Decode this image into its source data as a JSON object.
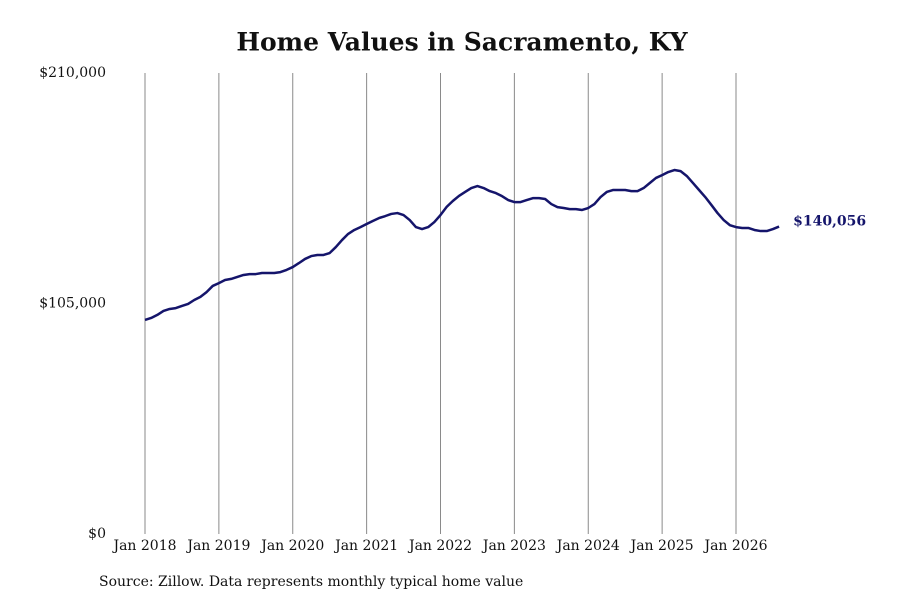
{
  "chart_data": {
    "type": "line",
    "title": "Home Values in Sacramento, KY",
    "source": "Source: Zillow. Data represents monthly typical home value",
    "x": [
      "Jan 2018",
      "Feb 2018",
      "Mar 2018",
      "Apr 2018",
      "May 2018",
      "Jun 2018",
      "Jul 2018",
      "Aug 2018",
      "Sep 2018",
      "Oct 2018",
      "Nov 2018",
      "Dec 2018",
      "Jan 2019",
      "Feb 2019",
      "Mar 2019",
      "Apr 2019",
      "May 2019",
      "Jun 2019",
      "Jul 2019",
      "Aug 2019",
      "Sep 2019",
      "Oct 2019",
      "Nov 2019",
      "Dec 2019",
      "Jan 2020",
      "Feb 2020",
      "Mar 2020",
      "Apr 2020",
      "May 2020",
      "Jun 2020",
      "Jul 2020",
      "Aug 2020",
      "Sep 2020",
      "Oct 2020",
      "Nov 2020",
      "Dec 2020",
      "Jan 2021",
      "Feb 2021",
      "Mar 2021",
      "Apr 2021",
      "May 2021",
      "Jun 2021",
      "Jul 2021",
      "Aug 2021",
      "Sep 2021",
      "Oct 2021",
      "Nov 2021",
      "Dec 2021",
      "Jan 2022",
      "Feb 2022",
      "Mar 2022",
      "Apr 2022",
      "May 2022",
      "Jun 2022",
      "Jul 2022",
      "Aug 2022",
      "Sep 2022",
      "Oct 2022",
      "Nov 2022",
      "Dec 2022",
      "Jan 2023",
      "Feb 2023",
      "Mar 2023",
      "Apr 2023",
      "May 2023",
      "Jun 2023",
      "Jul 2023",
      "Aug 2023",
      "Sep 2023",
      "Oct 2023",
      "Nov 2023",
      "Dec 2023",
      "Jan 2024",
      "Feb 2024",
      "Mar 2024",
      "Apr 2024",
      "May 2024",
      "Jun 2024",
      "Jul 2024",
      "Aug 2024",
      "Sep 2024",
      "Oct 2024",
      "Nov 2024",
      "Dec 2024",
      "Jan 2025",
      "Feb 2025",
      "Mar 2025",
      "Apr 2025",
      "May 2025",
      "Jun 2025",
      "Jul 2025",
      "Aug 2025",
      "Sep 2025",
      "Oct 2025",
      "Nov 2025",
      "Dec 2025",
      "Jan 2026",
      "Feb 2026",
      "Mar 2026",
      "Apr 2026",
      "May 2026",
      "Jun 2026",
      "Jul 2026",
      "Aug 2026"
    ],
    "values": [
      97500,
      98400,
      99800,
      101600,
      102500,
      102900,
      103900,
      104800,
      106600,
      108000,
      110200,
      113000,
      114300,
      115700,
      116200,
      117100,
      118000,
      118400,
      118400,
      118900,
      118900,
      118900,
      119300,
      120300,
      121600,
      123400,
      125300,
      126600,
      127100,
      127100,
      128000,
      130700,
      133900,
      136700,
      138500,
      139800,
      141200,
      142600,
      143900,
      144800,
      145800,
      146200,
      145300,
      143000,
      139800,
      138900,
      139800,
      142100,
      145300,
      149000,
      151700,
      154000,
      155800,
      157600,
      158500,
      157600,
      156200,
      155300,
      153900,
      152100,
      151200,
      151200,
      152100,
      153000,
      153000,
      152600,
      150300,
      148900,
      148500,
      148000,
      148000,
      147600,
      148500,
      150300,
      153500,
      155800,
      156700,
      156700,
      156700,
      156200,
      156200,
      157600,
      159900,
      162200,
      163500,
      164900,
      165800,
      165300,
      163100,
      159900,
      156700,
      153500,
      149900,
      146200,
      143000,
      140700,
      139800,
      139400,
      139400,
      138500,
      138000,
      138000,
      138900,
      140056
    ],
    "end_label": "$140,056",
    "color": "#15156b",
    "ylim": [
      0,
      210000
    ],
    "yticks": [
      {
        "value": 0,
        "label": "$0"
      },
      {
        "value": 105000,
        "label": "$105,000"
      },
      {
        "value": 210000,
        "label": "$210,000"
      }
    ],
    "xticks": [
      "Jan 2018",
      "Jan 2019",
      "Jan 2020",
      "Jan 2021",
      "Jan 2022",
      "Jan 2023",
      "Jan 2024",
      "Jan 2025",
      "Jan 2026"
    ],
    "grid": "x"
  }
}
